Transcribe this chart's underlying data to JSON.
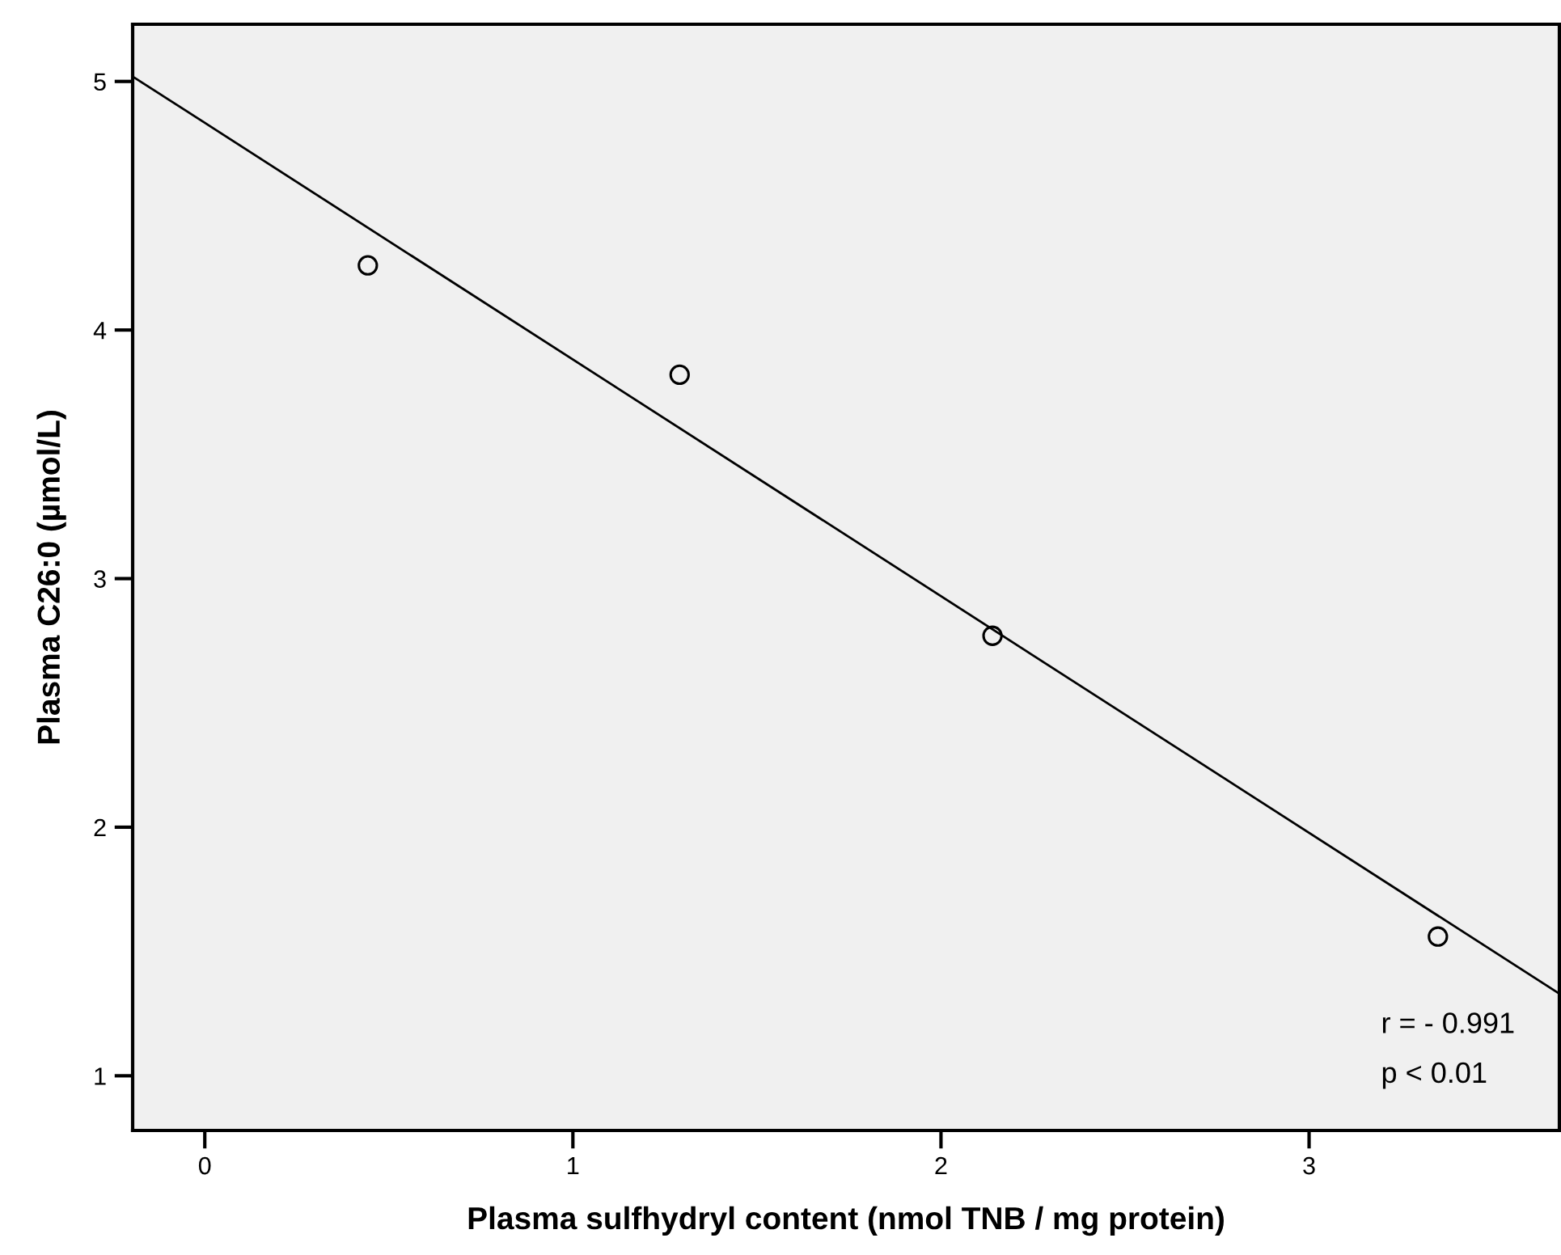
{
  "chart_data": {
    "type": "scatter",
    "xlabel": "Plasma sulfhydryl content (nmol TNB / mg protein)",
    "ylabel": "Plasma C26:0 (µmol/L)",
    "xlim": [
      -0.196,
      3.68
    ],
    "ylim": [
      0.78,
      5.23
    ],
    "xticks": [
      0,
      1,
      2,
      3
    ],
    "yticks": [
      1,
      2,
      3,
      4,
      5
    ],
    "grid": false,
    "marker": "circle",
    "series": [
      {
        "color": "#000000",
        "x": [
          0.443,
          1.29,
          2.14,
          3.35
        ],
        "values": [
          4.26,
          3.82,
          2.77,
          1.56
        ]
      },
      {
        "type": "line",
        "color": "#000000",
        "x": [
          -0.196,
          3.68
        ],
        "values": [
          5.02,
          1.33
        ],
        "marker": "none"
      }
    ],
    "annotations": [
      "r = - 0.991",
      "p < 0.01"
    ]
  }
}
